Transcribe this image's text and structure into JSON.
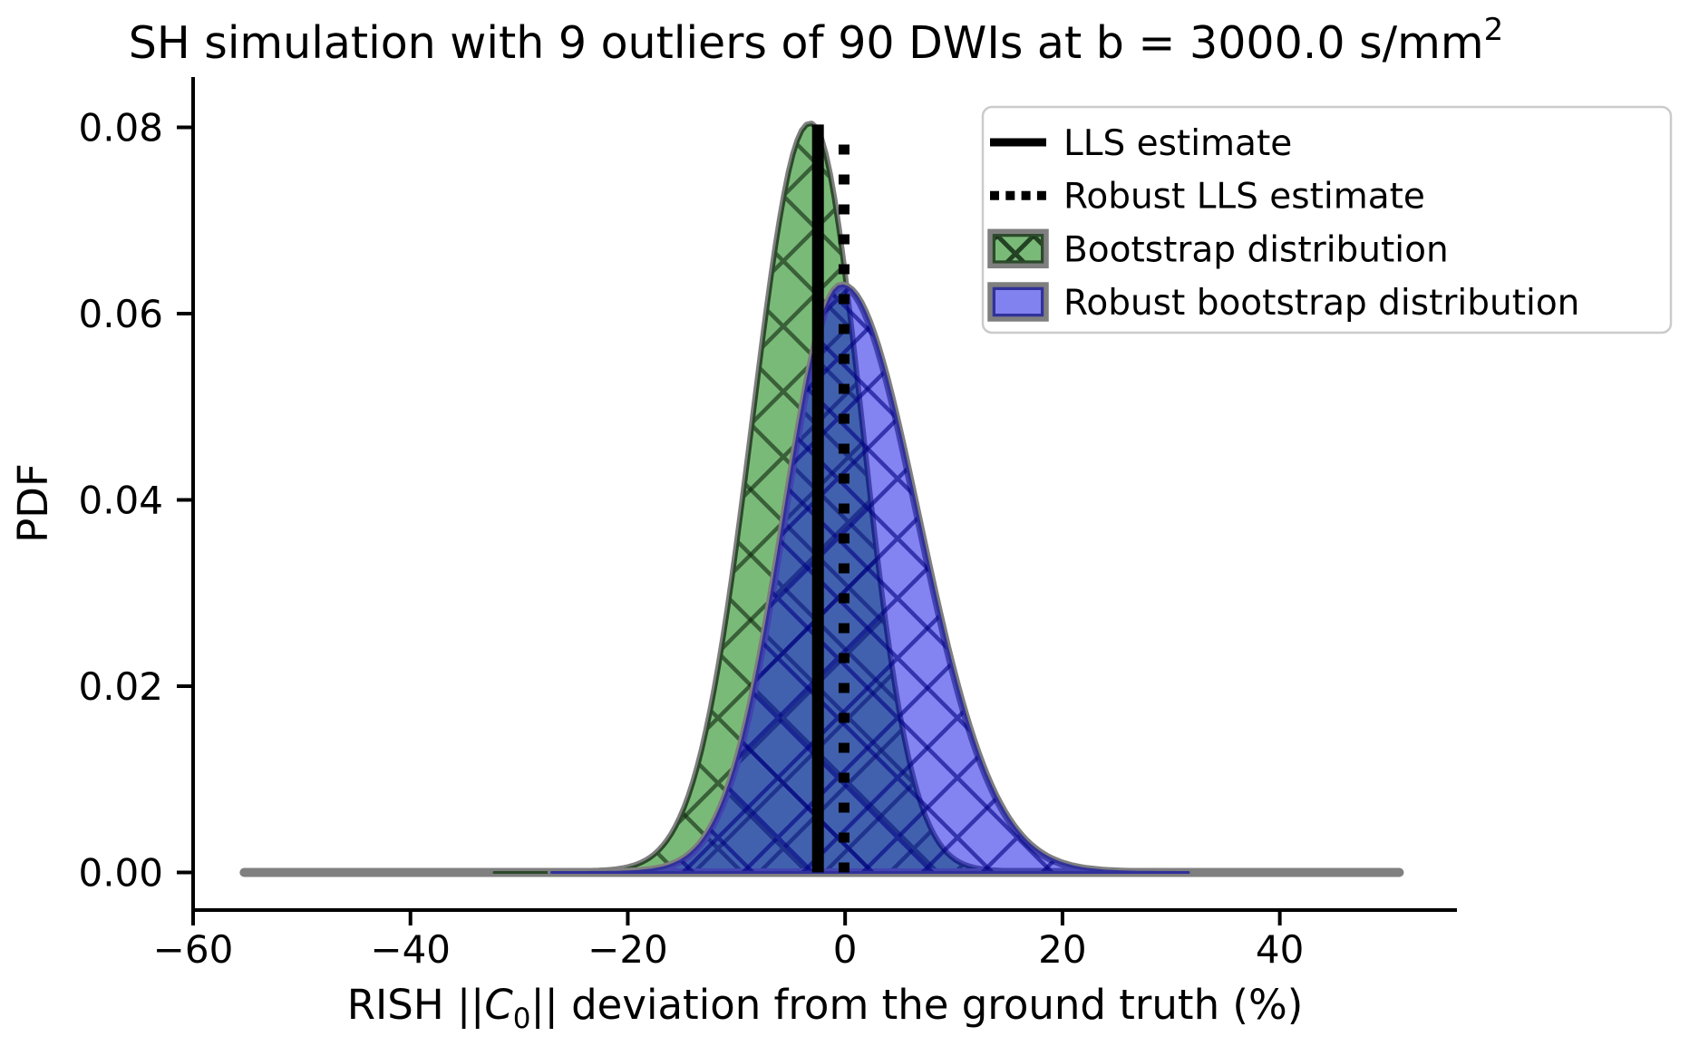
{
  "title": {
    "main": "SH simulation with 9 outliers of 90 DWIs at b = 3000.0 s/mm",
    "sup": "2"
  },
  "axes": {
    "ylabel": "PDF",
    "xlabel": {
      "prefix": "RISH ||",
      "variable": "C",
      "subscript": "0",
      "suffix": "|| deviation from the ground truth (%)"
    },
    "xlim": [
      -60.0,
      56.3
    ],
    "ylim": [
      -0.00404,
      0.0854
    ],
    "xticks": {
      "values": [
        -60,
        -40,
        -20,
        0,
        20,
        40
      ],
      "labels": [
        "−60",
        "−40",
        "−20",
        "0",
        "20",
        "40"
      ]
    },
    "yticks": {
      "values": [
        0.0,
        0.02,
        0.04,
        0.06,
        0.08
      ],
      "labels": [
        "0.00",
        "0.02",
        "0.04",
        "0.06",
        "0.08"
      ]
    },
    "spine_color": "#000000",
    "grid": false
  },
  "chart_data": {
    "type": "area",
    "description": "Two overlapping kernel-density (KDE) distributions with crosshatch fills plus two vertical estimate lines and a flat gray support baseline",
    "series": [
      {
        "name": "Bootstrap distribution",
        "kind": "kde-fill",
        "mean": -3.2,
        "sigma_left": 5.2,
        "sigma_right": 4.6,
        "peak": 0.0803,
        "support": [
          -32.3,
          27.0
        ],
        "fill_color": "#7aba78",
        "hatch": "x",
        "hatch_color": "rgba(14,36,14,0.6)",
        "edge_color": "#2c4a2b",
        "outline_color": "#7f7f7f"
      },
      {
        "name": "Robust bootstrap distribution",
        "kind": "kde-fill",
        "mean": -0.3,
        "sigma_left": 5.3,
        "sigma_right": 7.0,
        "peak": 0.063,
        "support": [
          -27.0,
          31.6
        ],
        "fill_color": "rgba(8,8,228,0.5)",
        "hatch": "x",
        "hatch_color": "rgba(0,0,130,0.6)",
        "edge_color": "#31319b",
        "outline_color": "#7f7f7f"
      },
      {
        "name": "LLS estimate",
        "kind": "vline",
        "x": -2.5,
        "y_top": 0.0803,
        "style": "solid",
        "color": "#000000",
        "width": 13
      },
      {
        "name": "Robust LLS estimate",
        "kind": "vline",
        "x": -0.1,
        "y_top": 0.0785,
        "style": "dotted",
        "color": "#000000",
        "width": 12
      },
      {
        "name": "kde-support-baseline",
        "kind": "hline",
        "y": 0.0,
        "x_range": [
          -55.3,
          51.0
        ],
        "color": "#808080",
        "width": 10
      }
    ]
  },
  "legend": {
    "border_color": "#cbcbcb",
    "background": "#ffffff",
    "items": [
      {
        "label": "LLS estimate",
        "handle": "line",
        "style": "solid",
        "color": "#000000"
      },
      {
        "label": "Robust LLS estimate",
        "handle": "line",
        "style": "dotted",
        "color": "#000000"
      },
      {
        "label": "Bootstrap distribution",
        "handle": "patch",
        "fill": "#7aba78",
        "hatch": "x",
        "hatch_color": "rgba(14,36,14,0.75)",
        "edge": "#2c4a2b",
        "outline": "#7f7f7f"
      },
      {
        "label": "Robust bootstrap distribution",
        "handle": "patch",
        "fill": "#8182f0",
        "hatch": "",
        "hatch_color": "",
        "edge": "#31319b",
        "outline": "#7f7f7f"
      }
    ]
  }
}
